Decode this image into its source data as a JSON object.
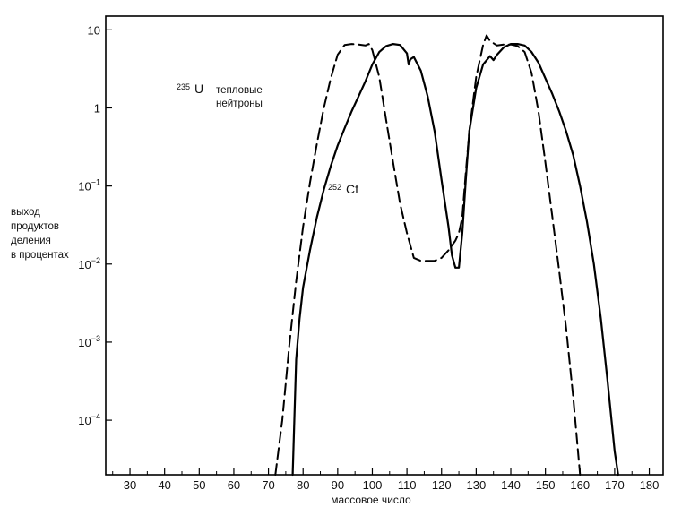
{
  "chart_data": {
    "type": "line",
    "title": "",
    "xlabel": "массовое число",
    "ylabel_lines": [
      "выход",
      "продуктов",
      "деления",
      "в процентах"
    ],
    "xlim": [
      23,
      184
    ],
    "ylim": [
      2e-05,
      15
    ],
    "y_scale": "log",
    "x_ticks": [
      30,
      40,
      50,
      60,
      70,
      80,
      90,
      100,
      110,
      120,
      130,
      140,
      150,
      160,
      170,
      180
    ],
    "y_ticks": [
      {
        "value": 10,
        "base": "10",
        "exp": ""
      },
      {
        "value": 1,
        "base": "1",
        "exp": ""
      },
      {
        "value": 0.1,
        "base": "10",
        "exp": "−1"
      },
      {
        "value": 0.01,
        "base": "10",
        "exp": "−2"
      },
      {
        "value": 0.001,
        "base": "10",
        "exp": "−3"
      },
      {
        "value": 0.0001,
        "base": "10",
        "exp": "−4"
      }
    ],
    "grid": false,
    "annotations": {
      "u235": {
        "sup": "235",
        "symbol": "U",
        "line1": "тепловые",
        "line2": "нейтроны"
      },
      "cf252": {
        "sup": "252",
        "symbol": "Cf"
      }
    },
    "series": [
      {
        "style": "dashed",
        "x": [
          72,
          74,
          76,
          78,
          80,
          82,
          84,
          86,
          88,
          90,
          92,
          94,
          96,
          98,
          99,
          100,
          102,
          104,
          106,
          108,
          110,
          112,
          114,
          116,
          118,
          120,
          122,
          124,
          125,
          126,
          127,
          128,
          130,
          132,
          133,
          134,
          136,
          138,
          140,
          142,
          144,
          146,
          148,
          150,
          152,
          154,
          156,
          158,
          160
        ],
        "y": [
          2e-05,
          0.0001,
          0.0009,
          0.006,
          0.03,
          0.11,
          0.35,
          1.0,
          2.4,
          4.8,
          6.4,
          6.6,
          6.5,
          6.3,
          6.6,
          5.5,
          2.5,
          0.7,
          0.2,
          0.06,
          0.025,
          0.012,
          0.011,
          0.011,
          0.011,
          0.012,
          0.015,
          0.02,
          0.025,
          0.04,
          0.15,
          0.5,
          2.5,
          6.4,
          8.5,
          7.2,
          6.3,
          6.5,
          6.5,
          6.2,
          5.2,
          2.8,
          0.9,
          0.2,
          0.04,
          0.008,
          0.0015,
          0.0002,
          2e-05
        ]
      },
      {
        "style": "solid",
        "x": [
          77,
          78,
          79,
          80,
          82,
          84,
          86,
          88,
          90,
          92,
          94,
          96,
          98,
          100,
          102,
          104,
          106,
          108,
          110,
          110.5,
          111,
          112,
          114,
          116,
          118,
          120,
          122,
          123,
          124,
          125,
          126,
          127,
          128,
          130,
          132,
          134,
          135,
          136,
          138,
          140,
          142,
          144,
          146,
          148,
          150,
          152,
          154,
          156,
          158,
          160,
          162,
          164,
          166,
          168,
          170,
          171
        ],
        "y": [
          2e-05,
          0.0006,
          0.002,
          0.005,
          0.015,
          0.04,
          0.09,
          0.18,
          0.33,
          0.55,
          0.9,
          1.4,
          2.2,
          3.6,
          5.2,
          6.2,
          6.6,
          6.4,
          5.0,
          3.6,
          4.2,
          4.5,
          3.0,
          1.4,
          0.5,
          0.12,
          0.03,
          0.013,
          0.009,
          0.009,
          0.025,
          0.12,
          0.5,
          1.8,
          3.6,
          4.6,
          4.1,
          4.8,
          6.0,
          6.6,
          6.6,
          6.3,
          5.2,
          3.8,
          2.4,
          1.5,
          0.9,
          0.5,
          0.25,
          0.1,
          0.035,
          0.01,
          0.002,
          0.0003,
          4e-05,
          2e-05
        ]
      }
    ]
  }
}
